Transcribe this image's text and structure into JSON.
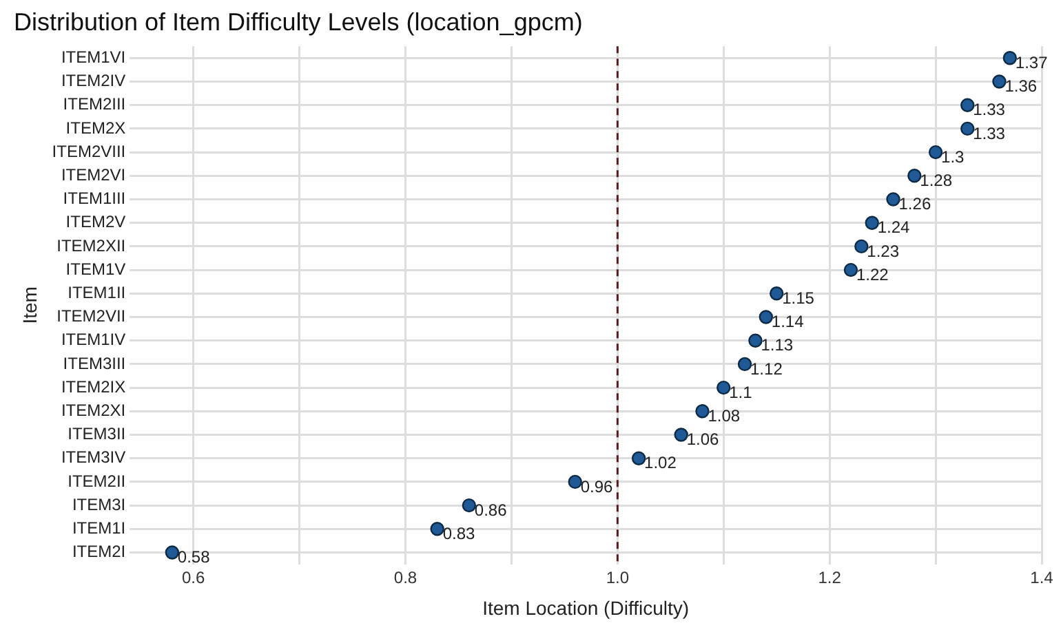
{
  "chart_data": {
    "type": "scatter",
    "orientation": "horizontal",
    "title": "Distribution of Item Difficulty Levels (location_gpcm)",
    "xlabel": "Item Location (Difficulty)",
    "ylabel": "Item",
    "categories": [
      "ITEM1VI",
      "ITEM2IV",
      "ITEM2III",
      "ITEM2X",
      "ITEM2VIII",
      "ITEM2VI",
      "ITEM1III",
      "ITEM2V",
      "ITEM2XII",
      "ITEM1V",
      "ITEM1II",
      "ITEM2VII",
      "ITEM1IV",
      "ITEM3III",
      "ITEM2IX",
      "ITEM2XI",
      "ITEM3II",
      "ITEM3IV",
      "ITEM2II",
      "ITEM3I",
      "ITEM1I",
      "ITEM2I"
    ],
    "values": [
      1.37,
      1.36,
      1.33,
      1.33,
      1.3,
      1.28,
      1.26,
      1.24,
      1.23,
      1.22,
      1.15,
      1.14,
      1.13,
      1.12,
      1.1,
      1.08,
      1.06,
      1.02,
      0.96,
      0.86,
      0.83,
      0.58
    ],
    "color": "#1f5a96",
    "marker": "circle",
    "data_labels": true,
    "grid": true,
    "legend": false,
    "xlim": [
      0.54,
      1.4
    ],
    "xticks": [
      0.6,
      {
        "value": 0.7,
        "label": null
      },
      0.8,
      {
        "value": 0.9,
        "label": null
      },
      {
        "value": 1.0,
        "label": "1.0"
      },
      {
        "value": 1.1,
        "label": null
      },
      1.2,
      {
        "value": 1.3,
        "label": null
      },
      1.4
    ],
    "ref_lines": [
      {
        "axis": "x",
        "value": 1.0,
        "color": "#5a1a1a",
        "line_style": "dashed"
      }
    ]
  }
}
